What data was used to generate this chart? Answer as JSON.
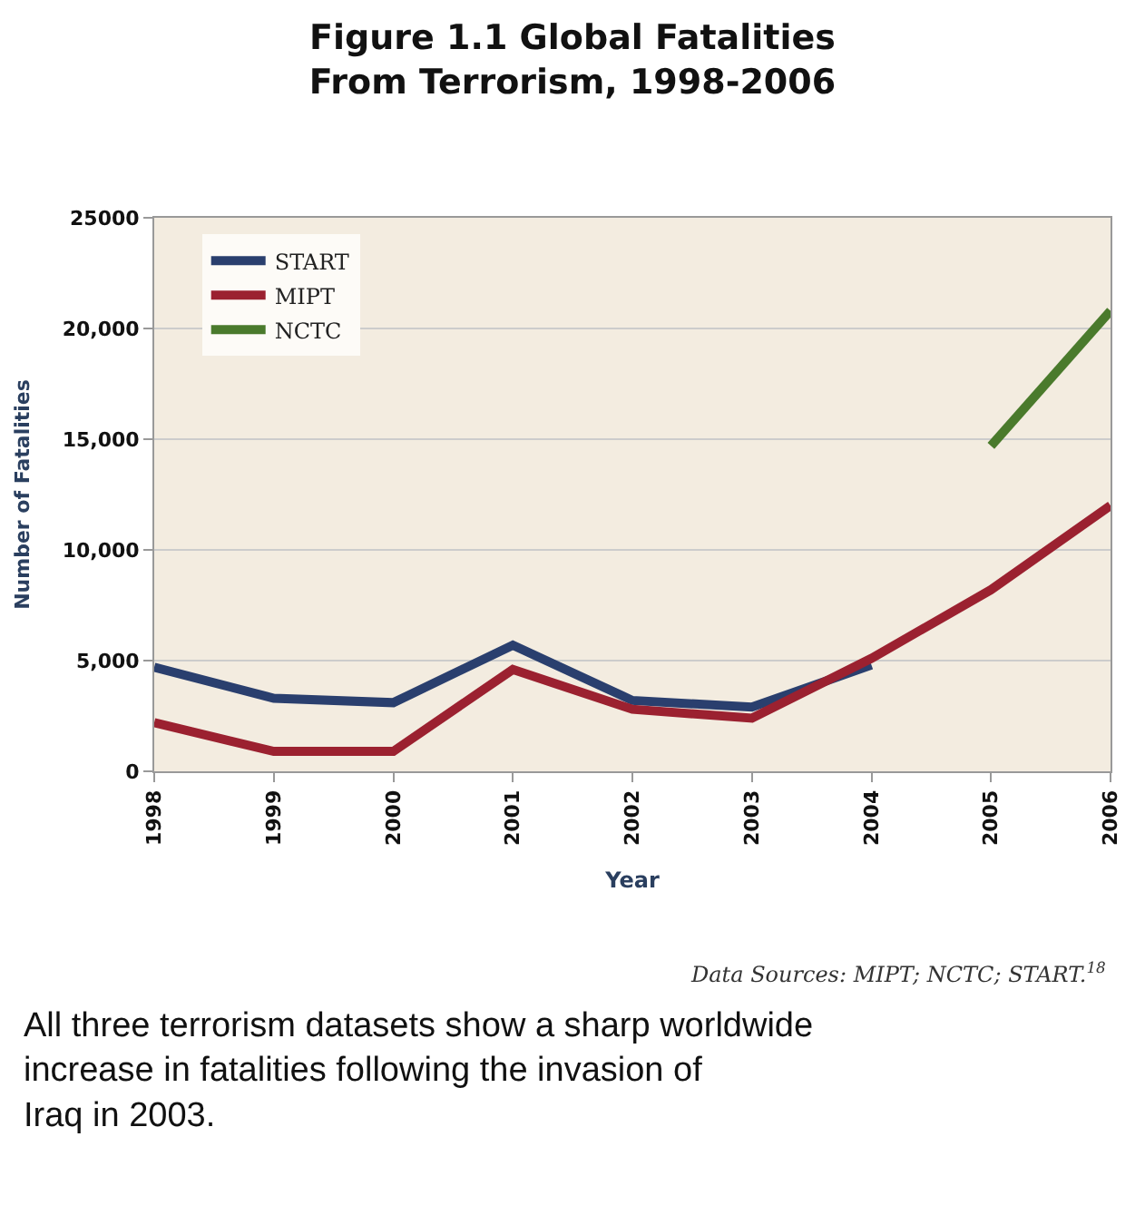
{
  "chart_data": {
    "type": "line",
    "title": "Figure 1.1 Global Fatalities\nFrom Terrorism, 1998-2006",
    "xlabel": "Year",
    "ylabel": "Number of Fatalities",
    "x": [
      1998,
      1999,
      2000,
      2001,
      2002,
      2003,
      2004,
      2005,
      2006
    ],
    "series": [
      {
        "name": "START",
        "color": "#2a3f6e",
        "values": [
          4700,
          3300,
          3100,
          5700,
          3200,
          2900,
          4800,
          null,
          null
        ]
      },
      {
        "name": "MIPT",
        "color": "#9b2130",
        "values": [
          2200,
          900,
          900,
          4600,
          2800,
          2400,
          5100,
          8200,
          12000
        ]
      },
      {
        "name": "NCTC",
        "color": "#4a7a2c",
        "values": [
          null,
          null,
          null,
          null,
          null,
          null,
          null,
          14700,
          20800
        ]
      }
    ],
    "xlim": [
      1998,
      2006
    ],
    "xticks": [
      1998,
      1999,
      2000,
      2001,
      2002,
      2003,
      2004,
      2005,
      2006
    ],
    "ylim": [
      0,
      25000
    ],
    "yticks": [
      0,
      {
        "value": 5000,
        "label": "5,000"
      },
      {
        "value": 10000,
        "label": "10,000"
      },
      {
        "value": 15000,
        "label": "15,000"
      },
      {
        "value": 20000,
        "label": "20,000"
      },
      25000
    ],
    "grid": "y",
    "legend": "top left",
    "marker": "none",
    "line_style": "solid",
    "annotations": [
      "Data Sources: MIPT; NCTC; START.$^{18}$",
      "All three terrorism datasets show a sharp worldwide increase in fatalities following the invasion of Iraq in 2003."
    ]
  }
}
